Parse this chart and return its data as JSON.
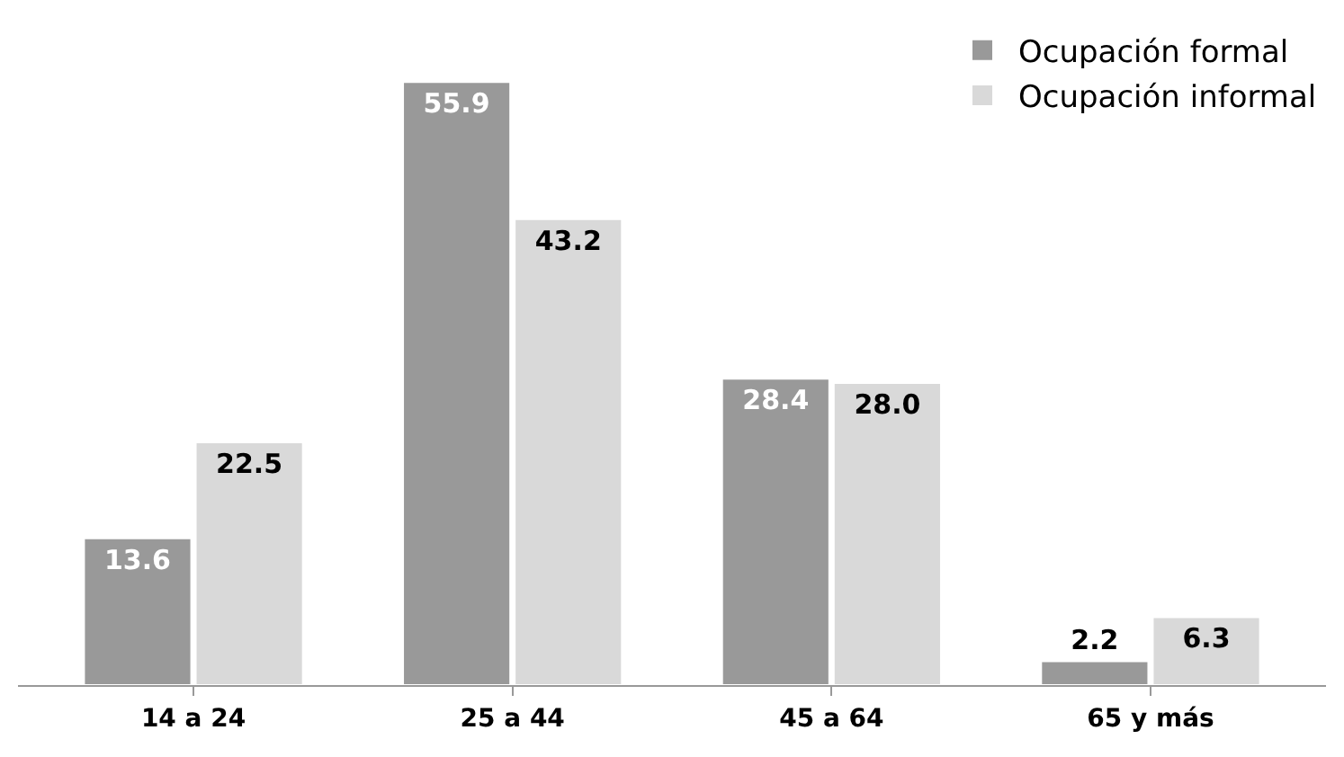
{
  "chart_data": {
    "type": "bar",
    "categories": [
      "14 a 24",
      "25 a 44",
      "45 a 64",
      "65 y más"
    ],
    "series": [
      {
        "name": "Ocupación formal",
        "color": "#999999",
        "values": [
          13.6,
          55.9,
          28.4,
          2.2
        ],
        "value_labels": [
          "13.6",
          "55.9",
          "28.4",
          "2.2"
        ]
      },
      {
        "name": "Ocupación informal",
        "color": "#d9d9d9",
        "values": [
          22.5,
          43.2,
          28.0,
          6.3
        ],
        "value_labels": [
          "22.5",
          "43.2",
          "28.0",
          "6.3"
        ]
      }
    ],
    "legend": "top right"
  }
}
